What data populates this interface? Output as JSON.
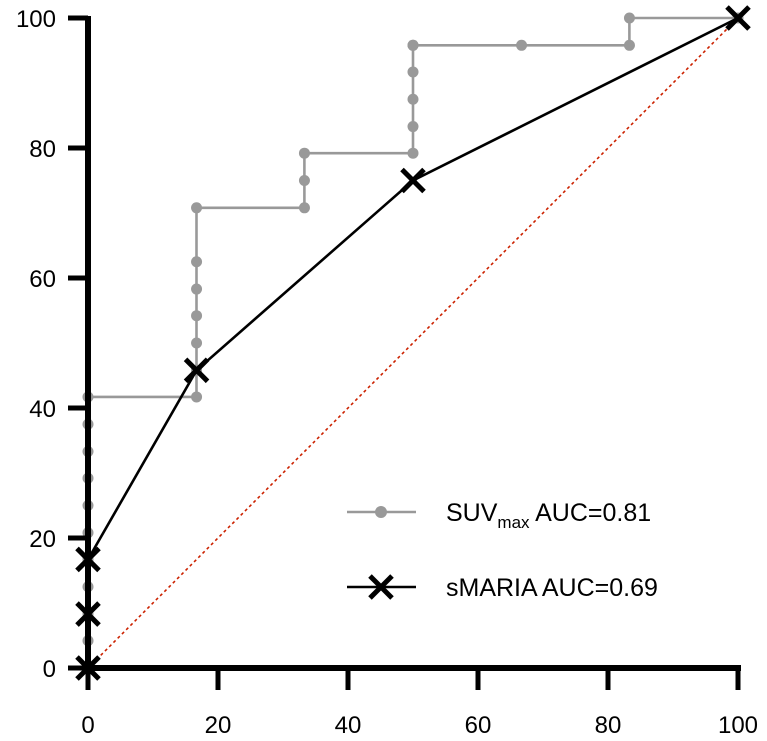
{
  "chart_data": {
    "type": "line",
    "title": "",
    "xlabel": "",
    "ylabel": "",
    "xlim": [
      0,
      100
    ],
    "ylim": [
      0,
      100
    ],
    "x_ticks": [
      "0",
      "20",
      "40",
      "60",
      "80",
      "100"
    ],
    "y_ticks": [
      "0",
      "20",
      "40",
      "60",
      "80",
      "100"
    ],
    "grid": false,
    "legend_position": "bottom-right",
    "series": [
      {
        "name": "SUVmax AUC=0.81",
        "legend_main": "SUV",
        "legend_sub": "max",
        "legend_rest": " AUC=0.81",
        "color": "#999999",
        "marker": "circle",
        "step": true,
        "x": [
          0,
          0,
          0,
          0,
          0,
          0,
          0,
          0,
          0,
          0,
          0,
          16.7,
          16.7,
          16.7,
          16.7,
          16.7,
          16.7,
          16.7,
          33.3,
          33.3,
          33.3,
          50,
          50,
          50,
          50,
          50,
          50,
          66.7,
          83.3,
          83.3,
          100
        ],
        "y": [
          0,
          4.2,
          8.3,
          12.5,
          16.7,
          20.8,
          25,
          29.2,
          33.3,
          37.5,
          41.7,
          41.7,
          45.8,
          50,
          54.2,
          58.3,
          62.5,
          70.8,
          70.8,
          75,
          79.2,
          79.2,
          83.3,
          87.5,
          91.7,
          95.8,
          95.8,
          95.8,
          95.8,
          100,
          100
        ]
      },
      {
        "name": "sMARIA AUC=0.69",
        "legend_main": "sMARIA AUC=0.69",
        "color": "#000000",
        "marker": "x",
        "step": false,
        "x": [
          0,
          0,
          0,
          16.7,
          50,
          100
        ],
        "y": [
          0,
          8.3,
          16.7,
          45.8,
          75,
          100
        ]
      }
    ],
    "reference_line": {
      "x": [
        0,
        100
      ],
      "y": [
        0,
        100
      ],
      "color": "#cc2200",
      "style": "dotted"
    }
  }
}
